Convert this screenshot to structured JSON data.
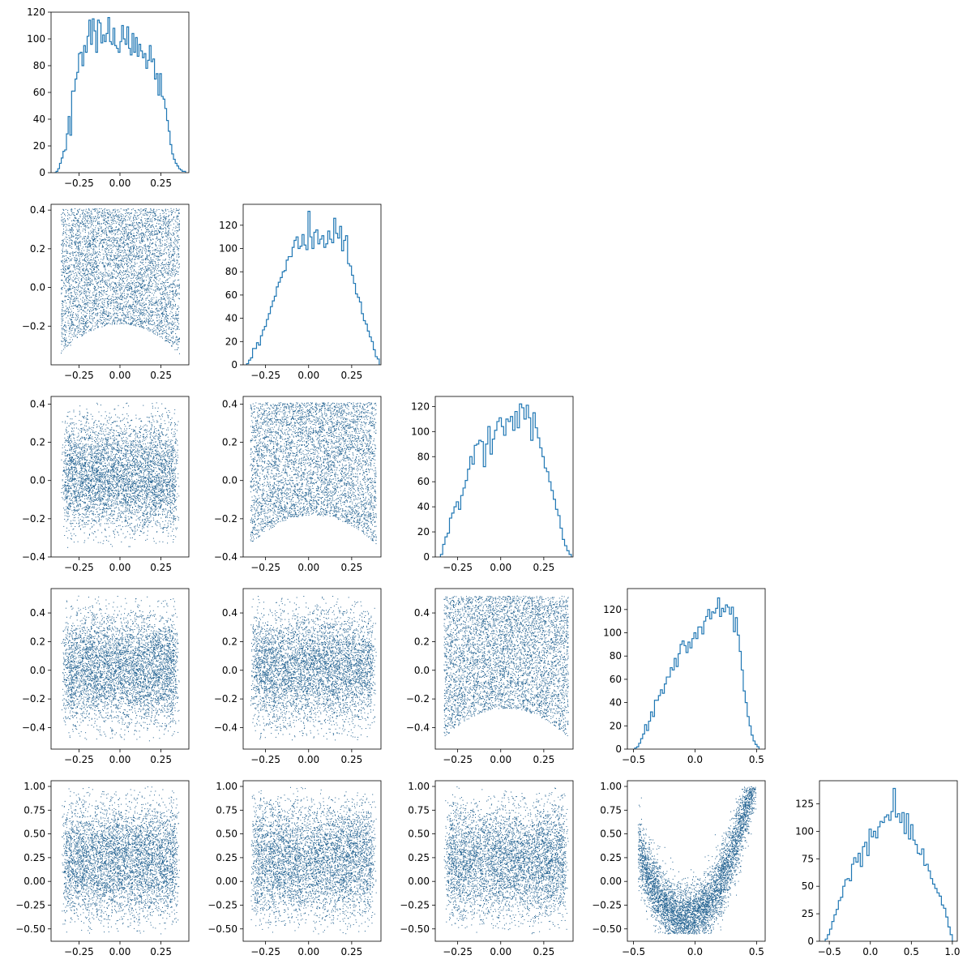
{
  "figure": {
    "layout": "corner-plot",
    "n_variables": 5,
    "histogram_color": "#1f77b4",
    "scatter_color": "#1f5f8f",
    "points_per_panel": 5000
  },
  "chart_data": [
    {
      "type": "histogram",
      "panel": [
        0,
        0
      ],
      "variable": 0,
      "xlim": [
        -0.42,
        0.42
      ],
      "ylim": [
        0,
        120
      ],
      "xticks": [
        -0.25,
        0.0,
        0.25
      ],
      "xtick_labels": [
        "−0.25",
        "0.00",
        "0.25"
      ],
      "yticks": [
        0,
        20,
        40,
        60,
        80,
        100,
        120
      ],
      "ytick_labels": [
        "0",
        "20",
        "40",
        "60",
        "80",
        "100",
        "120"
      ],
      "bin_range": [
        -0.4,
        0.4
      ],
      "counts": [
        0,
        1,
        3,
        7,
        11,
        16,
        17,
        29,
        42,
        28,
        61,
        61,
        70,
        75,
        89,
        90,
        80,
        95,
        90,
        102,
        114,
        96,
        115,
        106,
        90,
        114,
        112,
        97,
        103,
        98,
        104,
        116,
        98,
        96,
        108,
        95,
        93,
        90,
        98,
        110,
        100,
        96,
        109,
        93,
        88,
        104,
        90,
        101,
        87,
        96,
        91,
        86,
        89,
        78,
        84,
        95,
        83,
        85,
        70,
        74,
        58,
        74,
        57,
        55,
        48,
        39,
        31,
        21,
        14,
        10,
        7,
        5,
        3,
        2,
        1,
        1
      ]
    },
    {
      "type": "histogram",
      "panel": [
        1,
        1
      ],
      "variable": 1,
      "xlim": [
        -0.38,
        0.42
      ],
      "ylim": [
        0,
        138
      ],
      "xticks": [
        -0.25,
        0.0,
        0.25
      ],
      "xtick_labels": [
        "−0.25",
        "0.00",
        "0.25"
      ],
      "yticks": [
        0,
        20,
        40,
        60,
        80,
        100,
        120
      ],
      "ytick_labels": [
        "0",
        "20",
        "40",
        "60",
        "80",
        "100",
        "120"
      ],
      "bin_range": [
        -0.36,
        0.41
      ],
      "counts": [
        1,
        4,
        6,
        14,
        14,
        19,
        17,
        25,
        30,
        33,
        39,
        44,
        50,
        55,
        59,
        67,
        71,
        75,
        80,
        81,
        90,
        93,
        93,
        101,
        107,
        110,
        100,
        102,
        112,
        103,
        99,
        132,
        110,
        100,
        114,
        116,
        104,
        108,
        111,
        101,
        104,
        115,
        108,
        105,
        126,
        113,
        109,
        119,
        98,
        107,
        111,
        87,
        85,
        77,
        70,
        61,
        58,
        54,
        44,
        38,
        35,
        29,
        24,
        20,
        13,
        7,
        5
      ]
    },
    {
      "type": "histogram",
      "panel": [
        2,
        2
      ],
      "variable": 2,
      "xlim": [
        -0.38,
        0.42
      ],
      "ylim": [
        0,
        128
      ],
      "xticks": [
        -0.25,
        0.0,
        0.25
      ],
      "xtick_labels": [
        "−0.25",
        "0.00",
        "0.25"
      ],
      "yticks": [
        0,
        20,
        40,
        60,
        80,
        100,
        120
      ],
      "ytick_labels": [
        "0",
        "20",
        "40",
        "60",
        "80",
        "100",
        "120"
      ],
      "bin_range": [
        -0.35,
        0.41
      ],
      "counts": [
        2,
        10,
        16,
        19,
        31,
        35,
        40,
        44,
        38,
        49,
        55,
        61,
        70,
        80,
        74,
        89,
        90,
        93,
        92,
        72,
        90,
        104,
        82,
        94,
        101,
        108,
        111,
        104,
        97,
        110,
        108,
        112,
        101,
        116,
        103,
        122,
        119,
        110,
        121,
        111,
        93,
        115,
        103,
        95,
        87,
        80,
        71,
        68,
        60,
        53,
        46,
        38,
        33,
        23,
        14,
        9,
        5,
        2
      ]
    },
    {
      "type": "histogram",
      "panel": [
        3,
        3
      ],
      "variable": 3,
      "xlim": [
        -0.55,
        0.57
      ],
      "ylim": [
        0,
        138
      ],
      "xticks": [
        -0.5,
        0.0,
        0.5
      ],
      "xtick_labels": [
        "−0.5",
        "0.0",
        "0.5"
      ],
      "yticks": [
        0,
        20,
        40,
        60,
        80,
        100,
        120
      ],
      "ytick_labels": [
        "0",
        "20",
        "40",
        "60",
        "80",
        "100",
        "120"
      ],
      "bin_range": [
        -0.49,
        0.52
      ],
      "counts": [
        1,
        2,
        5,
        9,
        13,
        21,
        16,
        24,
        32,
        28,
        42,
        42,
        46,
        51,
        48,
        56,
        62,
        62,
        70,
        68,
        78,
        71,
        82,
        90,
        93,
        89,
        83,
        92,
        87,
        95,
        100,
        95,
        105,
        105,
        99,
        110,
        114,
        120,
        112,
        118,
        117,
        121,
        130,
        114,
        121,
        118,
        124,
        122,
        116,
        122,
        101,
        113,
        98,
        84,
        68,
        50,
        40,
        28,
        20,
        12,
        7,
        4,
        2
      ]
    },
    {
      "type": "histogram",
      "panel": [
        4,
        4
      ],
      "variable": 4,
      "xlim": [
        -0.62,
        1.06
      ],
      "ylim": [
        0,
        146
      ],
      "xticks": [
        -0.5,
        0.0,
        0.5,
        1.0
      ],
      "xtick_labels": [
        "−0.5",
        "0.0",
        "0.5",
        "1.0"
      ],
      "yticks": [
        0,
        25,
        50,
        75,
        100,
        125
      ],
      "ytick_labels": [
        "0",
        "25",
        "50",
        "75",
        "100",
        "125"
      ],
      "bin_range": [
        -0.55,
        1.0
      ],
      "counts": [
        2,
        6,
        11,
        18,
        24,
        29,
        37,
        40,
        50,
        56,
        57,
        55,
        70,
        76,
        72,
        80,
        68,
        86,
        90,
        78,
        102,
        95,
        100,
        94,
        104,
        109,
        108,
        113,
        115,
        110,
        118,
        139,
        113,
        116,
        108,
        117,
        98,
        116,
        93,
        106,
        92,
        88,
        80,
        79,
        84,
        69,
        70,
        64,
        57,
        52,
        48,
        44,
        41,
        33,
        30,
        22,
        13,
        6
      ]
    },
    {
      "type": "scatter",
      "panel": [
        1,
        0
      ],
      "x_var": 0,
      "y_var": 1,
      "xlim": [
        -0.42,
        0.42
      ],
      "ylim": [
        -0.4,
        0.43
      ],
      "xticks": [
        -0.25,
        0.0,
        0.25
      ],
      "xtick_labels": [
        "−0.25",
        "0.00",
        "0.25"
      ],
      "yticks": [
        -0.2,
        0.0,
        0.2,
        0.4
      ],
      "ytick_labels": [
        "−0.2",
        "0.0",
        "0.2",
        "0.4"
      ],
      "pattern": "cup",
      "x_range": [
        -0.38,
        0.38
      ],
      "y_range": [
        -0.36,
        0.41
      ]
    },
    {
      "type": "scatter",
      "panel": [
        2,
        0
      ],
      "x_var": 0,
      "y_var": 2,
      "xlim": [
        -0.42,
        0.42
      ],
      "ylim": [
        -0.4,
        0.44
      ],
      "xticks": [
        -0.25,
        0.0,
        0.25
      ],
      "xtick_labels": [
        "−0.25",
        "0.00",
        "0.25"
      ],
      "yticks": [
        -0.4,
        -0.2,
        0.0,
        0.2,
        0.4
      ],
      "ytick_labels": [
        "−0.4",
        "−0.2",
        "0.0",
        "0.2",
        "0.4"
      ],
      "pattern": "box",
      "x_range": [
        -0.38,
        0.38
      ],
      "y_range": [
        -0.35,
        0.41
      ]
    },
    {
      "type": "scatter",
      "panel": [
        2,
        1
      ],
      "x_var": 1,
      "y_var": 2,
      "xlim": [
        -0.38,
        0.42
      ],
      "ylim": [
        -0.4,
        0.44
      ],
      "xticks": [
        -0.25,
        0.0,
        0.25
      ],
      "xtick_labels": [
        "−0.25",
        "0.00",
        "0.25"
      ],
      "yticks": [
        -0.4,
        -0.2,
        0.0,
        0.2,
        0.4
      ],
      "ytick_labels": [
        "−0.4",
        "−0.2",
        "0.0",
        "0.2",
        "0.4"
      ],
      "pattern": "cup",
      "x_range": [
        -0.36,
        0.41
      ],
      "y_range": [
        -0.35,
        0.41
      ]
    },
    {
      "type": "scatter",
      "panel": [
        3,
        0
      ],
      "x_var": 0,
      "y_var": 3,
      "xlim": [
        -0.42,
        0.42
      ],
      "ylim": [
        -0.55,
        0.57
      ],
      "xticks": [
        -0.25,
        0.0,
        0.25
      ],
      "xtick_labels": [
        "−0.25",
        "0.00",
        "0.25"
      ],
      "yticks": [
        -0.4,
        -0.2,
        0.0,
        0.2,
        0.4
      ],
      "ytick_labels": [
        "−0.4",
        "−0.2",
        "0.0",
        "0.2",
        "0.4"
      ],
      "pattern": "box",
      "x_range": [
        -0.38,
        0.38
      ],
      "y_range": [
        -0.49,
        0.52
      ]
    },
    {
      "type": "scatter",
      "panel": [
        3,
        1
      ],
      "x_var": 1,
      "y_var": 3,
      "xlim": [
        -0.38,
        0.42
      ],
      "ylim": [
        -0.55,
        0.57
      ],
      "xticks": [
        -0.25,
        0.0,
        0.25
      ],
      "xtick_labels": [
        "−0.25",
        "0.00",
        "0.25"
      ],
      "yticks": [
        -0.4,
        -0.2,
        0.0,
        0.2,
        0.4
      ],
      "ytick_labels": [
        "−0.4",
        "−0.2",
        "0.0",
        "0.2",
        "0.4"
      ],
      "pattern": "box",
      "x_range": [
        -0.36,
        0.41
      ],
      "y_range": [
        -0.49,
        0.52
      ]
    },
    {
      "type": "scatter",
      "panel": [
        3,
        2
      ],
      "x_var": 2,
      "y_var": 3,
      "xlim": [
        -0.38,
        0.42
      ],
      "ylim": [
        -0.55,
        0.57
      ],
      "xticks": [
        -0.25,
        0.0,
        0.25
      ],
      "xtick_labels": [
        "−0.25",
        "0.00",
        "0.25"
      ],
      "yticks": [
        -0.4,
        -0.2,
        0.0,
        0.2,
        0.4
      ],
      "ytick_labels": [
        "−0.4",
        "−0.2",
        "0.0",
        "0.2",
        "0.4"
      ],
      "pattern": "cup",
      "x_range": [
        -0.35,
        0.41
      ],
      "y_range": [
        -0.49,
        0.52
      ]
    },
    {
      "type": "scatter",
      "panel": [
        4,
        0
      ],
      "x_var": 0,
      "y_var": 4,
      "xlim": [
        -0.42,
        0.42
      ],
      "ylim": [
        -0.63,
        1.06
      ],
      "xticks": [
        -0.25,
        0.0,
        0.25
      ],
      "xtick_labels": [
        "−0.25",
        "0.00",
        "0.25"
      ],
      "yticks": [
        -0.5,
        -0.25,
        0.0,
        0.25,
        0.5,
        0.75,
        1.0
      ],
      "ytick_labels": [
        "−0.50",
        "−0.25",
        "0.00",
        "0.25",
        "0.50",
        "0.75",
        "1.00"
      ],
      "pattern": "box",
      "x_range": [
        -0.38,
        0.38
      ],
      "y_range": [
        -0.55,
        1.0
      ]
    },
    {
      "type": "scatter",
      "panel": [
        4,
        1
      ],
      "x_var": 1,
      "y_var": 4,
      "xlim": [
        -0.38,
        0.42
      ],
      "ylim": [
        -0.63,
        1.06
      ],
      "xticks": [
        -0.25,
        0.0,
        0.25
      ],
      "xtick_labels": [
        "−0.25",
        "0.00",
        "0.25"
      ],
      "yticks": [
        -0.5,
        -0.25,
        0.0,
        0.25,
        0.5,
        0.75,
        1.0
      ],
      "ytick_labels": [
        "−0.50",
        "−0.25",
        "0.00",
        "0.25",
        "0.50",
        "0.75",
        "1.00"
      ],
      "pattern": "box",
      "x_range": [
        -0.36,
        0.41
      ],
      "y_range": [
        -0.55,
        1.0
      ]
    },
    {
      "type": "scatter",
      "panel": [
        4,
        2
      ],
      "x_var": 2,
      "y_var": 4,
      "xlim": [
        -0.38,
        0.42
      ],
      "ylim": [
        -0.63,
        1.06
      ],
      "xticks": [
        -0.25,
        0.0,
        0.25
      ],
      "xtick_labels": [
        "−0.25",
        "0.00",
        "0.25"
      ],
      "yticks": [
        -0.5,
        -0.25,
        0.0,
        0.25,
        0.5,
        0.75,
        1.0
      ],
      "ytick_labels": [
        "−0.50",
        "−0.25",
        "0.00",
        "0.25",
        "0.50",
        "0.75",
        "1.00"
      ],
      "pattern": "box",
      "x_range": [
        -0.35,
        0.41
      ],
      "y_range": [
        -0.55,
        1.0
      ]
    },
    {
      "type": "scatter",
      "panel": [
        4,
        3
      ],
      "x_var": 3,
      "y_var": 4,
      "xlim": [
        -0.55,
        0.57
      ],
      "ylim": [
        -0.63,
        1.06
      ],
      "xticks": [
        -0.5,
        0.0,
        0.5
      ],
      "xtick_labels": [
        "−0.5",
        "0.0",
        "0.5"
      ],
      "yticks": [
        -0.5,
        -0.25,
        0.0,
        0.25,
        0.5,
        0.75,
        1.0
      ],
      "ytick_labels": [
        "−0.50",
        "−0.25",
        "0.00",
        "0.25",
        "0.50",
        "0.75",
        "1.00"
      ],
      "pattern": "parabola",
      "x_range": [
        -0.49,
        0.52
      ],
      "y_range": [
        -0.55,
        1.0
      ]
    }
  ]
}
